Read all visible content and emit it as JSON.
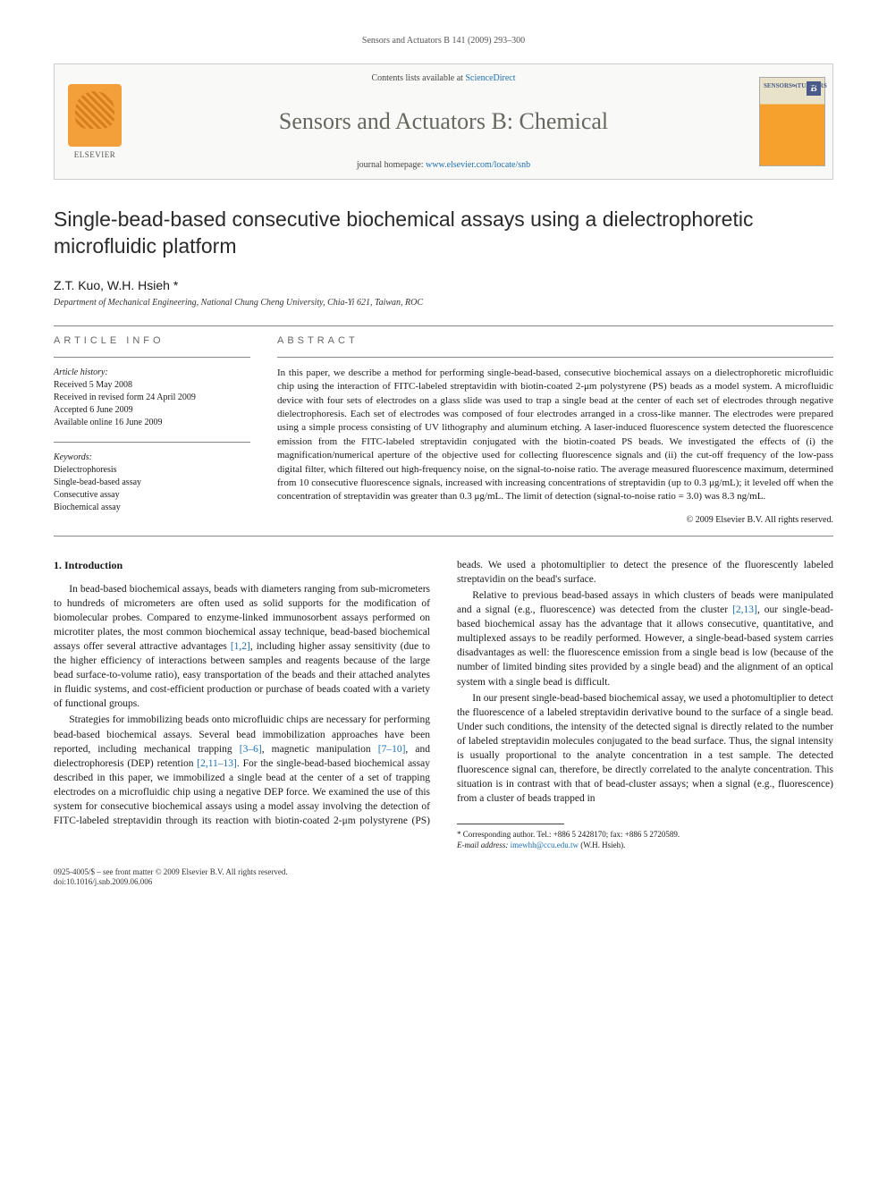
{
  "running_header": "Sensors and Actuators B 141 (2009) 293–300",
  "banner": {
    "publisher": "ELSEVIER",
    "contents_prefix": "Contents lists available at ",
    "contents_link": "ScienceDirect",
    "journal_title": "Sensors and Actuators B: Chemical",
    "homepage_prefix": "journal homepage: ",
    "homepage_link": "www.elsevier.com/locate/snb",
    "cover_badge": "B"
  },
  "article": {
    "title": "Single-bead-based consecutive biochemical assays using a dielectrophoretic microfluidic platform",
    "authors": "Z.T. Kuo, W.H. Hsieh *",
    "affiliation": "Department of Mechanical Engineering, National Chung Cheng University, Chia-Yi 621, Taiwan, ROC"
  },
  "info": {
    "label": "ARTICLE INFO",
    "history_hdr": "Article history:",
    "history": [
      "Received 5 May 2008",
      "Received in revised form 24 April 2009",
      "Accepted 6 June 2009",
      "Available online 16 June 2009"
    ],
    "keywords_hdr": "Keywords:",
    "keywords": [
      "Dielectrophoresis",
      "Single-bead-based assay",
      "Consecutive assay",
      "Biochemical assay"
    ]
  },
  "abstract": {
    "label": "ABSTRACT",
    "text": "In this paper, we describe a method for performing single-bead-based, consecutive biochemical assays on a dielectrophoretic microfluidic chip using the interaction of FITC-labeled streptavidin with biotin-coated 2-μm polystyrene (PS) beads as a model system. A microfluidic device with four sets of electrodes on a glass slide was used to trap a single bead at the center of each set of electrodes through negative dielectrophoresis. Each set of electrodes was composed of four electrodes arranged in a cross-like manner. The electrodes were prepared using a simple process consisting of UV lithography and aluminum etching. A laser-induced fluorescence system detected the fluorescence emission from the FITC-labeled streptavidin conjugated with the biotin-coated PS beads. We investigated the effects of (i) the magnification/numerical aperture of the objective used for collecting fluorescence signals and (ii) the cut-off frequency of the low-pass digital filter, which filtered out high-frequency noise, on the signal-to-noise ratio. The average measured fluorescence maximum, determined from 10 consecutive fluorescence signals, increased with increasing concentrations of streptavidin (up to 0.3 μg/mL); it leveled off when the concentration of streptavidin was greater than 0.3 μg/mL. The limit of detection (signal-to-noise ratio = 3.0) was 8.3 ng/mL.",
    "copyright": "© 2009 Elsevier B.V. All rights reserved."
  },
  "body": {
    "heading": "1. Introduction",
    "p1": "In bead-based biochemical assays, beads with diameters ranging from sub-micrometers to hundreds of micrometers are often used as solid supports for the modification of biomolecular probes. Compared to enzyme-linked immunosorbent assays performed on microtiter plates, the most common biochemical assay technique, bead-based biochemical assays offer several attractive advantages ",
    "p1_ref": "[1,2]",
    "p1_tail": ", including higher assay sensitivity (due to the higher efficiency of interactions between samples and reagents because of the large bead surface-to-volume ratio), easy transportation of the beads and their attached analytes in fluidic systems, and cost-efficient production or purchase of beads coated with a variety of functional groups.",
    "p2a": "Strategies for immobilizing beads onto microfluidic chips are necessary for performing bead-based biochemical assays. Several bead immobilization approaches have been reported, including mechanical trapping ",
    "p2_ref1": "[3–6]",
    "p2b": ", magnetic manipulation ",
    "p2_ref2": "[7–10]",
    "p2c": ", and dielectrophoresis (DEP) retention ",
    "p2_ref3": "[2,11–13]",
    "p2d": ". For the single-bead-based biochemical assay described in this paper, we immobilized a single bead at the center of a set of trapping electrodes on a microfluidic chip using a negative DEP force. We examined the use of this system for consecutive biochemical assays using a model assay involving the detection of FITC-labeled streptavidin through its reaction with biotin-coated 2-μm polystyrene (PS) beads. We used a photomultiplier to detect the presence of the fluorescently labeled streptavidin on the bead's surface.",
    "p3a": "Relative to previous bead-based assays in which clusters of beads were manipulated and a signal (e.g., fluorescence) was detected from the cluster ",
    "p3_ref": "[2,13]",
    "p3b": ", our single-bead-based biochemical assay has the advantage that it allows consecutive, quantitative, and multiplexed assays to be readily performed. However, a single-bead-based system carries disadvantages as well: the fluorescence emission from a single bead is low (because of the number of limited binding sites provided by a single bead) and the alignment of an optical system with a single bead is difficult.",
    "p4": "In our present single-bead-based biochemical assay, we used a photomultiplier to detect the fluorescence of a labeled streptavidin derivative bound to the surface of a single bead. Under such conditions, the intensity of the detected signal is directly related to the number of labeled streptavidin molecules conjugated to the bead surface. Thus, the signal intensity is usually proportional to the analyte concentration in a test sample. The detected fluorescence signal can, therefore, be directly correlated to the analyte concentration. This situation is in contrast with that of bead-cluster assays; when a signal (e.g., fluorescence) from a cluster of beads trapped in"
  },
  "footnote": {
    "corr": "* Corresponding author. Tel.: +886 5 2428170; fax: +886 5 2720589.",
    "email_label": "E-mail address: ",
    "email": "imewhh@ccu.edu.tw",
    "email_tail": " (W.H. Hsieh)."
  },
  "footer": {
    "line1": "0925-4005/$ – see front matter © 2009 Elsevier B.V. All rights reserved.",
    "line2": "doi:10.1016/j.snb.2009.06.006"
  }
}
